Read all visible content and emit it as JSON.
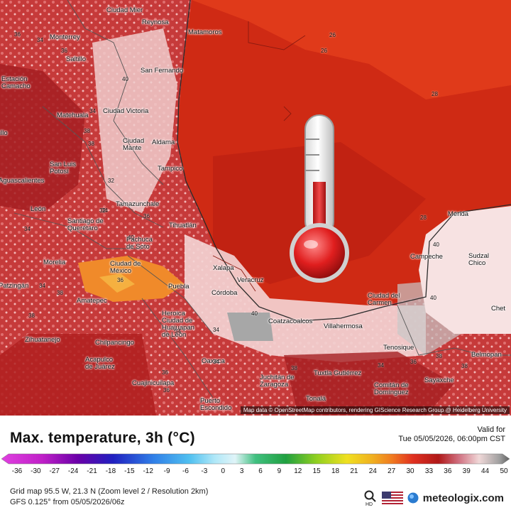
{
  "map": {
    "cities": [
      {
        "name": "Ciudad Mier"
      },
      {
        "name": "Reynosa"
      },
      {
        "name": "Matamoros"
      },
      {
        "name": "Monterrey"
      },
      {
        "name": "Saltillo"
      },
      {
        "name": "San Fernando"
      },
      {
        "name": "Estación Camacho"
      },
      {
        "name": "Matehuala"
      },
      {
        "name": "Ciudad Victoria"
      },
      {
        "name": "Ciudad Mante"
      },
      {
        "name": "Aldama"
      },
      {
        "name": "San Luis Potosí"
      },
      {
        "name": "Tampico"
      },
      {
        "name": "Aguascalientes"
      },
      {
        "name": "León"
      },
      {
        "name": "Tamazunchale"
      },
      {
        "name": "Santiago de Querétaro"
      },
      {
        "name": "Tihuatlán"
      },
      {
        "name": "Pachuca de Soto"
      },
      {
        "name": "Morelia"
      },
      {
        "name": "Ciudad de México"
      },
      {
        "name": "Xalapa"
      },
      {
        "name": "Veracruz"
      },
      {
        "name": "Puebla"
      },
      {
        "name": "Córdoba"
      },
      {
        "name": "Amatepec"
      },
      {
        "name": "Heroica Ciudad de Huajuapan de León"
      },
      {
        "name": "Coatzacoalcos"
      },
      {
        "name": "Villahermosa"
      },
      {
        "name": "Zihuatanejo"
      },
      {
        "name": "Chilpancingo"
      },
      {
        "name": "Acapulco de Juárez"
      },
      {
        "name": "Oaxaca"
      },
      {
        "name": "Cuajinicuilapa"
      },
      {
        "name": "Juchitán de Zaragoza"
      },
      {
        "name": "Tuxtla Gutiérrez"
      },
      {
        "name": "Comitán de Domínguez"
      },
      {
        "name": "Puerto Escondido"
      },
      {
        "name": "Tonalá"
      },
      {
        "name": "Ciudad del Carmen"
      },
      {
        "name": "Campeche"
      },
      {
        "name": "Mérida"
      },
      {
        "name": "Sudzal Chico"
      },
      {
        "name": "Tenosique"
      },
      {
        "name": "Sayaxche"
      },
      {
        "name": "Belmopan"
      },
      {
        "name": "Chet"
      },
      {
        "name": "Patzingán"
      },
      {
        "name": "illo"
      }
    ],
    "isolines": [
      "36",
      "34",
      "34",
      "26",
      "28",
      "26",
      "28",
      "38",
      "34",
      "38",
      "34",
      "34",
      "36",
      "36",
      "38",
      "40",
      "40",
      "40",
      "38",
      "34",
      "34",
      "36",
      "38",
      "36",
      "34",
      "34",
      "36",
      "38",
      "38",
      "40",
      "40",
      "32",
      "32",
      "36"
    ],
    "attribution": "Map data © OpenStreetMap contributors, rendering GIScience Research Group @ Heidelberg University"
  },
  "panel": {
    "title": "Max. temperature, 3h (°C)",
    "valid_label": "Valid for",
    "valid_time": "Tue 05/05/2026, 06:00pm CST",
    "scale_ticks": [
      "-36",
      "-30",
      "-27",
      "-24",
      "-21",
      "-18",
      "-15",
      "-12",
      "-9",
      "-6",
      "-3",
      "0",
      "3",
      "6",
      "9",
      "12",
      "15",
      "18",
      "21",
      "24",
      "27",
      "30",
      "33",
      "36",
      "39",
      "44",
      "50"
    ],
    "grid_info": "Grid map 95.5 W, 21.3 N (Zoom level 2 / Resolution 2km)",
    "model_info": "GFS 0.125° from  05/05/2026/06z",
    "logo_text": "meteologix.com",
    "zoom_label": "HD"
  },
  "colors": {
    "ocean": "#cf2a14",
    "hot_land": "#b8282a",
    "warm_land": "#f3dada",
    "hottest": "#f08a2a"
  }
}
